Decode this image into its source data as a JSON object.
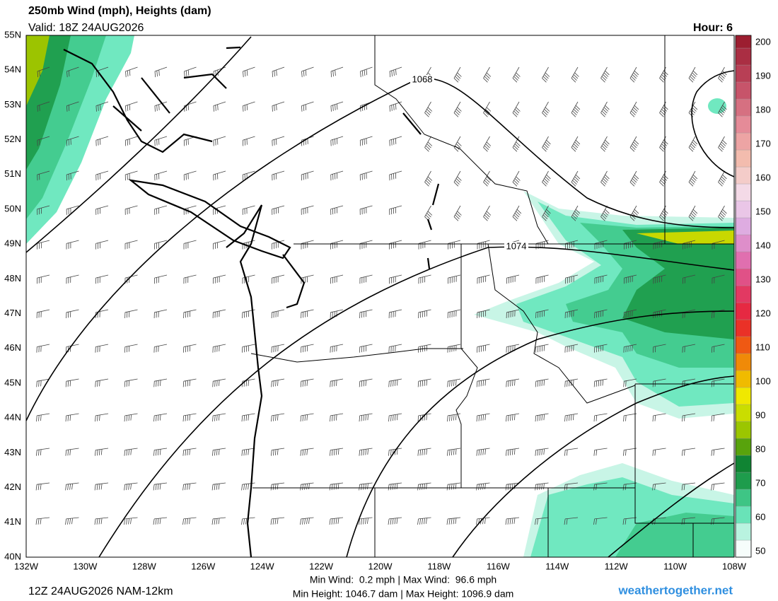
{
  "header": {
    "title": "250mb Wind (mph), Heights (dam)",
    "valid": "Valid: 18Z 24AUG2026",
    "hour": "Hour: 6"
  },
  "map": {
    "lat_labels": [
      "55N",
      "54N",
      "53N",
      "52N",
      "51N",
      "50N",
      "49N",
      "48N",
      "47N",
      "46N",
      "45N",
      "44N",
      "43N",
      "42N",
      "41N",
      "40N"
    ],
    "lon_labels": [
      "132W",
      "130W",
      "128W",
      "126W",
      "124W",
      "122W",
      "120W",
      "118W",
      "116W",
      "114W",
      "112W",
      "110W",
      "108W"
    ],
    "contour_labels": [
      "1068",
      "1074"
    ]
  },
  "colorbar": {
    "labels": [
      200,
      190,
      180,
      170,
      160,
      150,
      140,
      130,
      120,
      110,
      100,
      90,
      80,
      70,
      60,
      50
    ],
    "stops": [
      [
        50,
        "#ffffff"
      ],
      [
        55,
        "#c8f5e6"
      ],
      [
        60,
        "#70e8c0"
      ],
      [
        65,
        "#44cc90"
      ],
      [
        70,
        "#20a050"
      ],
      [
        78,
        "#0a7a28"
      ],
      [
        82,
        "#78b400"
      ],
      [
        95,
        "#f0f000"
      ],
      [
        102,
        "#f0b000"
      ],
      [
        110,
        "#f06010"
      ],
      [
        118,
        "#e82030"
      ],
      [
        128,
        "#e04070"
      ],
      [
        136,
        "#e070b0"
      ],
      [
        145,
        "#dca8e0"
      ],
      [
        155,
        "#f4dcec"
      ],
      [
        165,
        "#f4c0b0"
      ],
      [
        175,
        "#e8909c"
      ],
      [
        188,
        "#c04860"
      ],
      [
        205,
        "#901020"
      ]
    ]
  },
  "footer": {
    "run": "12Z 24AUG2026 NAM-12km",
    "wind": "Min Wind:  0.2 mph | Max Wind:  96.6 mph",
    "height": "Min Height: 1046.7 dam | Max Height: 1096.9 dam",
    "site": "weathertogether.net"
  }
}
